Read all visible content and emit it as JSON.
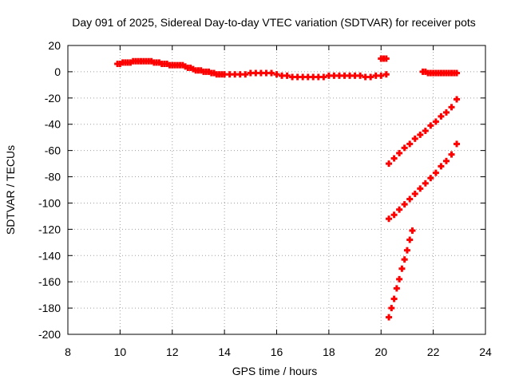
{
  "chart_data": {
    "type": "scatter",
    "title": "Day 091 of 2025, Sidereal Day-to-day VTEC variation (SDTVAR) for receiver pots",
    "xlabel": "GPS time / hours",
    "ylabel": "SDTVAR / TECUs",
    "xlim": [
      8,
      24
    ],
    "ylim": [
      -200,
      20
    ],
    "xticks": [
      8,
      10,
      12,
      14,
      16,
      18,
      20,
      22,
      24
    ],
    "yticks": [
      -200,
      -180,
      -160,
      -140,
      -120,
      -100,
      -80,
      -60,
      -40,
      -20,
      0,
      20
    ],
    "grid": true,
    "marker": "plus",
    "color": "#ff0000",
    "series": [
      {
        "points": [
          [
            9.9,
            6
          ],
          [
            10.0,
            6
          ],
          [
            10.1,
            7
          ],
          [
            10.2,
            7
          ],
          [
            10.3,
            7
          ],
          [
            10.4,
            7
          ],
          [
            10.5,
            8
          ],
          [
            10.6,
            8
          ],
          [
            10.7,
            8
          ],
          [
            10.8,
            8
          ],
          [
            10.9,
            8
          ],
          [
            11.0,
            8
          ],
          [
            11.1,
            8
          ],
          [
            11.2,
            8
          ],
          [
            11.3,
            7
          ],
          [
            11.4,
            7
          ],
          [
            11.5,
            7
          ],
          [
            11.6,
            6
          ],
          [
            11.7,
            6
          ],
          [
            11.8,
            6
          ],
          [
            11.9,
            5
          ],
          [
            12.0,
            5
          ],
          [
            12.1,
            5
          ],
          [
            12.2,
            5
          ],
          [
            12.3,
            5
          ],
          [
            12.4,
            5
          ],
          [
            12.5,
            4
          ],
          [
            12.6,
            3
          ],
          [
            12.7,
            3
          ],
          [
            12.8,
            2
          ],
          [
            12.9,
            1
          ],
          [
            13.0,
            1
          ],
          [
            13.1,
            1
          ],
          [
            13.2,
            0
          ],
          [
            13.3,
            0
          ],
          [
            13.4,
            0
          ],
          [
            13.5,
            -1
          ],
          [
            13.6,
            -1
          ],
          [
            13.7,
            -2
          ],
          [
            13.8,
            -2
          ],
          [
            13.9,
            -2
          ],
          [
            14.0,
            -2
          ],
          [
            14.2,
            -2
          ],
          [
            14.4,
            -2
          ],
          [
            14.6,
            -2
          ],
          [
            14.8,
            -2
          ],
          [
            15.0,
            -1
          ],
          [
            15.2,
            -1
          ],
          [
            15.4,
            -1
          ],
          [
            15.6,
            -1
          ],
          [
            15.8,
            -1
          ],
          [
            16.0,
            -2
          ],
          [
            16.2,
            -3
          ],
          [
            16.4,
            -3
          ],
          [
            16.6,
            -4
          ],
          [
            16.8,
            -4
          ],
          [
            17.0,
            -4
          ],
          [
            17.2,
            -4
          ],
          [
            17.4,
            -4
          ],
          [
            17.6,
            -4
          ],
          [
            17.8,
            -4
          ],
          [
            18.0,
            -3
          ],
          [
            18.2,
            -3
          ],
          [
            18.4,
            -3
          ],
          [
            18.6,
            -3
          ],
          [
            18.8,
            -3
          ],
          [
            19.0,
            -3
          ],
          [
            19.2,
            -3
          ],
          [
            19.4,
            -4
          ],
          [
            19.6,
            -4
          ],
          [
            19.8,
            -3
          ],
          [
            20.0,
            -3
          ],
          [
            20.2,
            -2
          ],
          [
            20.0,
            10
          ],
          [
            20.1,
            10
          ],
          [
            20.2,
            10
          ],
          [
            21.6,
            0
          ],
          [
            21.7,
            0
          ],
          [
            21.8,
            -1
          ],
          [
            21.9,
            -1
          ],
          [
            22.0,
            -1
          ],
          [
            22.1,
            -1
          ],
          [
            22.2,
            -1
          ],
          [
            22.3,
            -1
          ],
          [
            22.4,
            -1
          ],
          [
            22.5,
            -1
          ],
          [
            22.6,
            -1
          ],
          [
            22.7,
            -1
          ],
          [
            22.8,
            -1
          ],
          [
            22.9,
            -1
          ],
          [
            20.3,
            -70
          ],
          [
            20.5,
            -66
          ],
          [
            20.7,
            -62
          ],
          [
            20.9,
            -58
          ],
          [
            21.1,
            -55
          ],
          [
            21.3,
            -51
          ],
          [
            21.5,
            -48
          ],
          [
            21.7,
            -45
          ],
          [
            21.9,
            -41
          ],
          [
            22.1,
            -38
          ],
          [
            22.3,
            -34
          ],
          [
            22.5,
            -31
          ],
          [
            22.7,
            -27
          ],
          [
            22.9,
            -21
          ],
          [
            20.3,
            -112
          ],
          [
            20.5,
            -109
          ],
          [
            20.7,
            -105
          ],
          [
            20.9,
            -101
          ],
          [
            21.1,
            -97
          ],
          [
            21.3,
            -93
          ],
          [
            21.5,
            -89
          ],
          [
            21.7,
            -85
          ],
          [
            21.9,
            -81
          ],
          [
            22.1,
            -77
          ],
          [
            22.3,
            -72
          ],
          [
            22.5,
            -68
          ],
          [
            22.7,
            -63
          ],
          [
            22.9,
            -55
          ],
          [
            20.3,
            -187
          ],
          [
            20.4,
            -180
          ],
          [
            20.5,
            -173
          ],
          [
            20.6,
            -165
          ],
          [
            20.7,
            -158
          ],
          [
            20.8,
            -150
          ],
          [
            20.9,
            -143
          ],
          [
            21.0,
            -136
          ],
          [
            21.1,
            -128
          ],
          [
            21.2,
            -121
          ]
        ]
      }
    ]
  }
}
